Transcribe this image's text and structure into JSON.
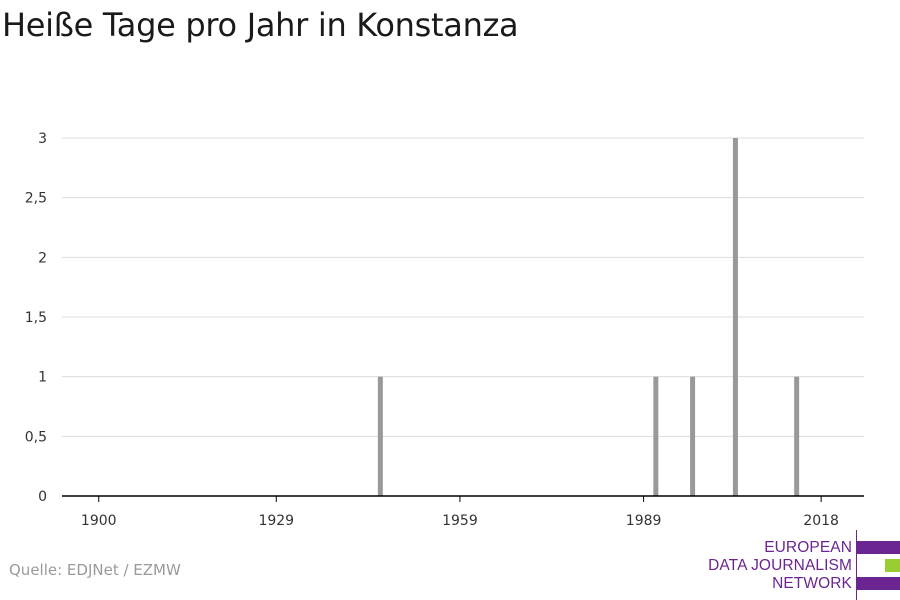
{
  "chart_data": {
    "type": "bar",
    "title": "Heiße Tage pro Jahr in Konstanza",
    "xlabel": "",
    "ylabel": "",
    "x": [
      1946,
      1991,
      1997,
      2004,
      2014
    ],
    "values": [
      1,
      1,
      1,
      3,
      1
    ],
    "xlim": [
      1894,
      2025
    ],
    "ylim": [
      0,
      3
    ],
    "yticks": [
      0,
      0.5,
      1,
      1.5,
      2,
      2.5,
      3
    ],
    "ytick_labels": [
      "0",
      "0,5",
      "1",
      "1,5",
      "2",
      "2,5",
      "3"
    ],
    "xticks": [
      1900,
      1929,
      1959,
      1989,
      2018
    ],
    "xtick_labels": [
      "1900",
      "1929",
      "1959",
      "1989",
      "2018"
    ],
    "grid": true,
    "bar_color": "#999999",
    "grid_color": "#dddddd",
    "axis_color": "#000000"
  },
  "source": "Quelle: EDJNet / EZMW",
  "logo": {
    "lines": [
      "EUROPEAN",
      "DATA JOURNALISM",
      "NETWORK"
    ],
    "colors": {
      "text": "#6a2590",
      "primary": "#6a2590",
      "accent": "#9acd32"
    }
  }
}
